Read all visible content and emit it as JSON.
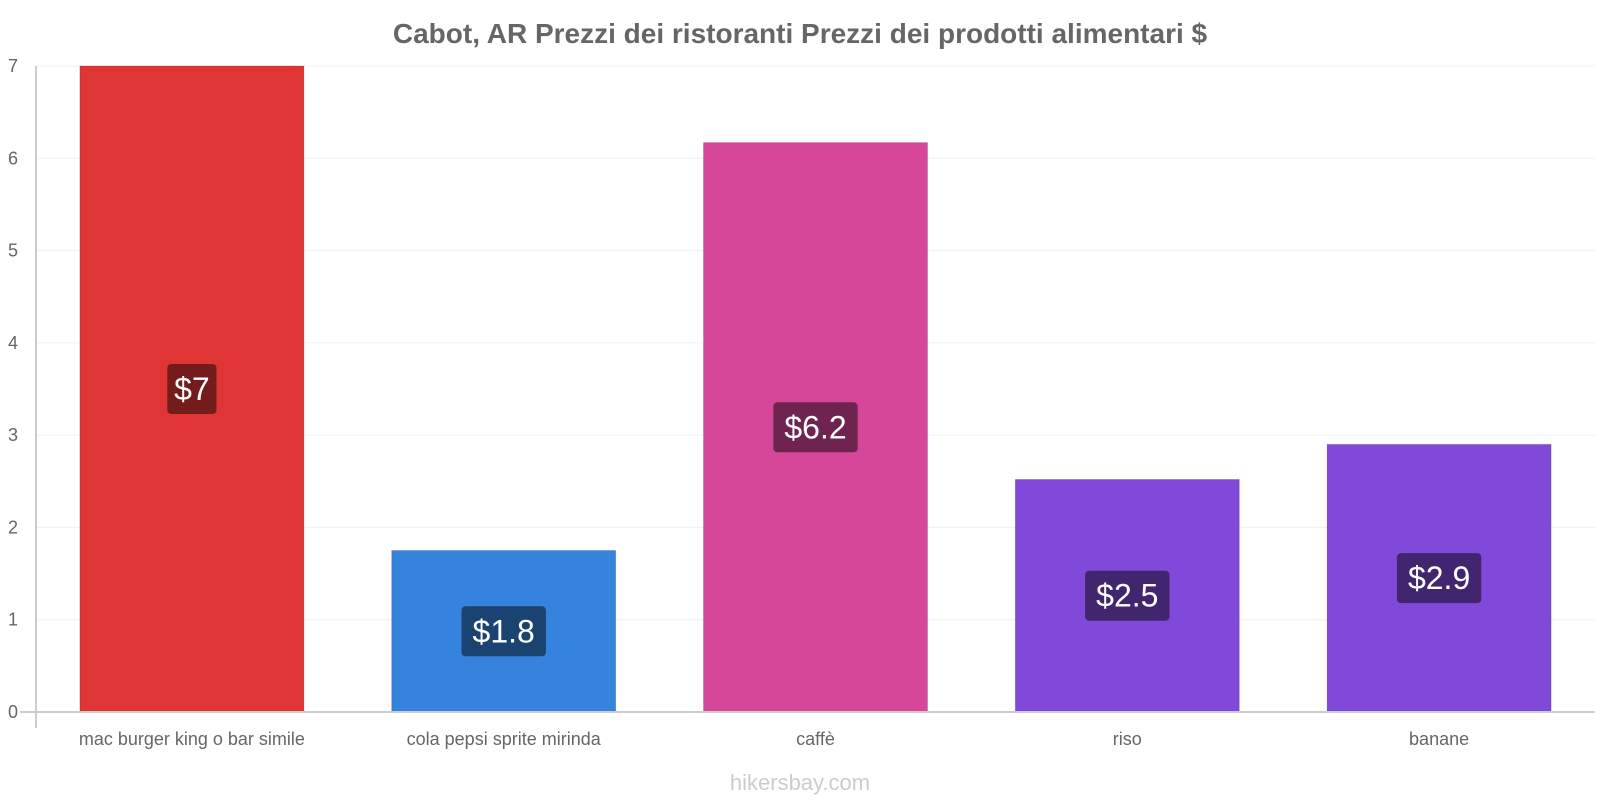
{
  "chart_data": {
    "type": "bar",
    "title": "Cabot, AR Prezzi dei ristoranti Prezzi dei prodotti alimentari $",
    "categories": [
      "mac burger king o bar simile",
      "cola pepsi sprite mirinda",
      "caffè",
      "riso",
      "banane"
    ],
    "values": [
      7,
      1.75,
      6.17,
      2.52,
      2.9
    ],
    "value_labels": [
      "$7",
      "$1.8",
      "$6.2",
      "$2.5",
      "$2.9"
    ],
    "bar_colors": [
      "#e03535",
      "#3583dd",
      "#d6479a",
      "#8049d9",
      "#8049d9"
    ],
    "label_bg_colors": [
      "#741c1c",
      "#1b4372",
      "#6f2450",
      "#42256f",
      "#42256f"
    ],
    "ylim": [
      0,
      7
    ],
    "yticks": [
      "0",
      "1",
      "2",
      "3",
      "4",
      "5",
      "6",
      "7"
    ],
    "xlabel": "",
    "ylabel": "",
    "grid": true
  },
  "watermark": "hikersbay.com"
}
